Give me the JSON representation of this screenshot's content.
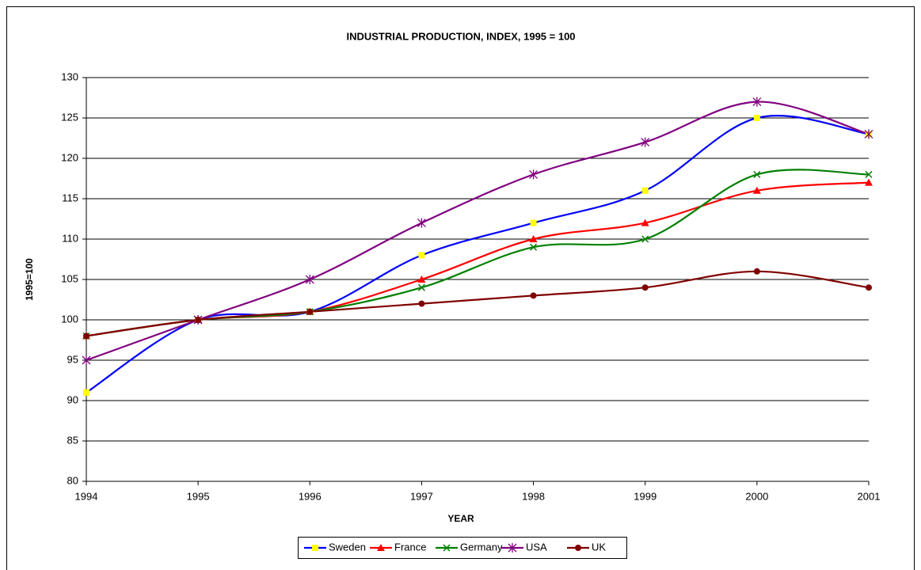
{
  "chart_data": {
    "type": "line",
    "title": "INDUSTRIAL PRODUCTION, INDEX, 1995 = 100",
    "x_label": "YEAR",
    "y_label": "1995=100",
    "x": [
      1994,
      1995,
      1996,
      1997,
      1998,
      1999,
      2000,
      2001
    ],
    "xlim": [
      1994,
      2001
    ],
    "xticks": [
      1994,
      1995,
      1996,
      1997,
      1998,
      1999,
      2000,
      2001
    ],
    "ylim": [
      80,
      130
    ],
    "yticks": [
      80,
      85,
      90,
      95,
      100,
      105,
      110,
      115,
      120,
      125,
      130
    ],
    "grid": true,
    "smooth": true,
    "legend": "bottom",
    "series": [
      {
        "name": "Sweden",
        "color": "#0000ff",
        "marker_color": "#ffff00",
        "marker": "square",
        "values": [
          91,
          100,
          101,
          108,
          112,
          116,
          125,
          123
        ]
      },
      {
        "name": "France",
        "color": "#ff0000",
        "marker_color": "#ff0000",
        "marker": "triangle",
        "values": [
          98,
          100,
          101,
          105,
          110,
          112,
          116,
          117
        ]
      },
      {
        "name": "Germany",
        "color": "#008000",
        "marker_color": "#008000",
        "marker": "x",
        "values": [
          98,
          100,
          101,
          104,
          109,
          110,
          118,
          118
        ]
      },
      {
        "name": "USA",
        "color": "#800080",
        "marker_color": "#800080",
        "marker": "star",
        "values": [
          95,
          100,
          105,
          112,
          118,
          122,
          127,
          123
        ]
      },
      {
        "name": "UK",
        "color": "#800000",
        "marker_color": "#800000",
        "marker": "circle",
        "values": [
          98,
          100,
          101,
          102,
          103,
          104,
          106,
          104
        ]
      }
    ]
  }
}
